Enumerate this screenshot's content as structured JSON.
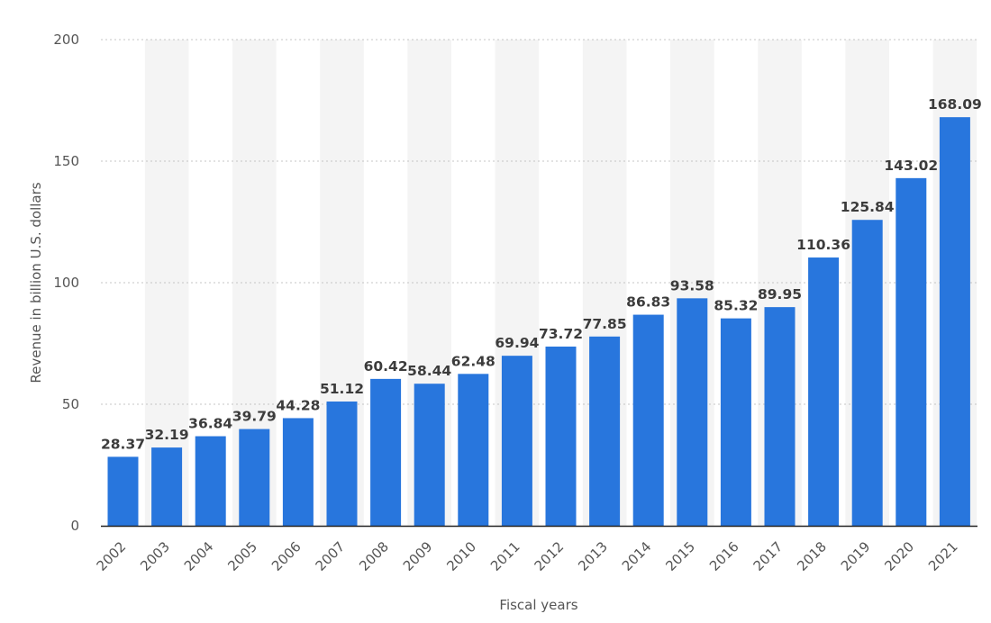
{
  "chart_data": {
    "type": "bar",
    "title": "",
    "xlabel": "Fiscal years",
    "ylabel": "Revenue in billion U.S. dollars",
    "ylim": [
      0,
      200
    ],
    "yticks": [
      "0",
      "50",
      "100",
      "150",
      "200"
    ],
    "grid": true,
    "categories": [
      "2002",
      "2003",
      "2004",
      "2005",
      "2006",
      "2007",
      "2008",
      "2009",
      "2010",
      "2011",
      "2012",
      "2013",
      "2014",
      "2015",
      "2016",
      "2017",
      "2018",
      "2019",
      "2020",
      "2021"
    ],
    "values": [
      28.37,
      32.19,
      36.84,
      39.79,
      44.28,
      51.12,
      60.42,
      58.44,
      62.48,
      69.94,
      73.72,
      77.85,
      86.83,
      93.58,
      85.32,
      89.95,
      110.36,
      125.84,
      143.02,
      168.09
    ],
    "value_labels": [
      "28.37",
      "32.19",
      "36.84",
      "39.79",
      "44.28",
      "51.12",
      "60.42",
      "58.44",
      "62.48",
      "69.94",
      "73.72",
      "77.85",
      "86.83",
      "93.58",
      "85.32",
      "89.95",
      "110.36",
      "125.84",
      "143.02",
      "168.09"
    ],
    "colors": {
      "bar": "#2876dd",
      "band": "#f4f4f4",
      "grid": "#c4c4c4",
      "axis": "#222222"
    }
  }
}
